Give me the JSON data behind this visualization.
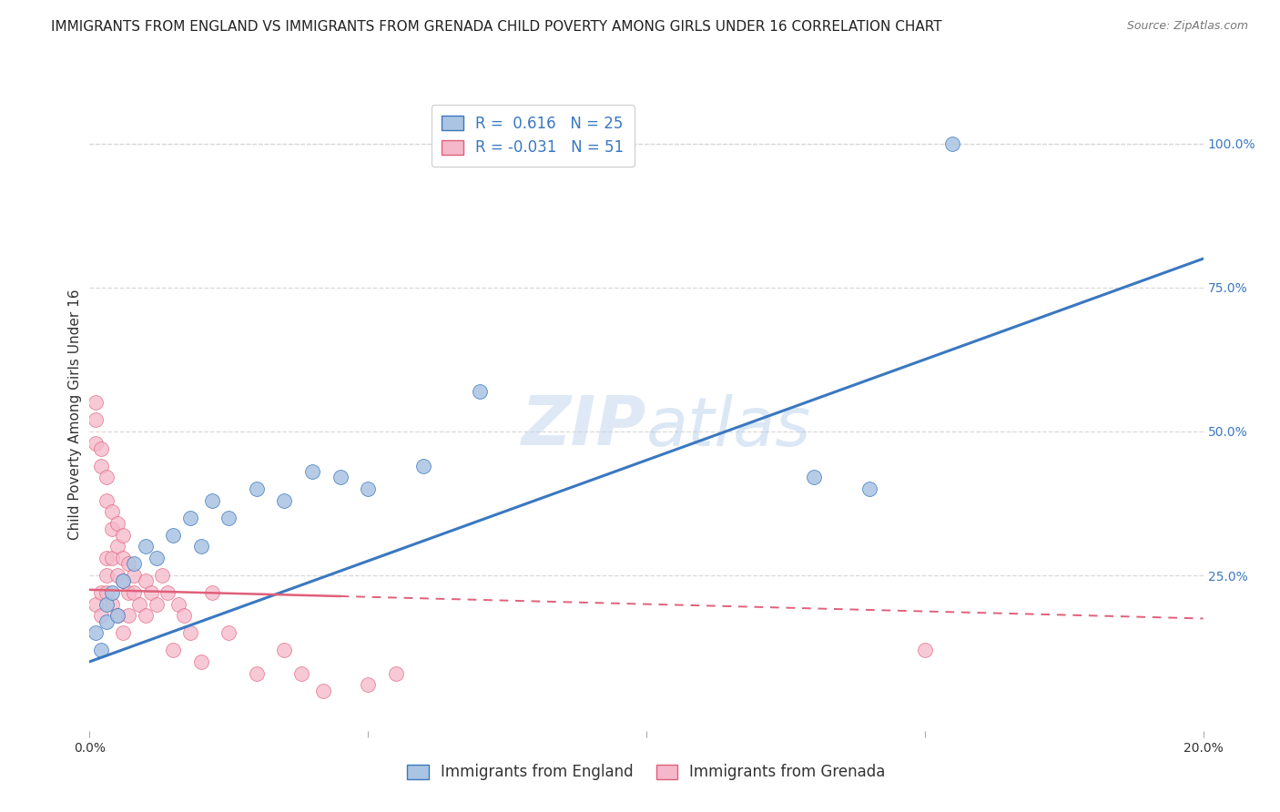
{
  "title": "IMMIGRANTS FROM ENGLAND VS IMMIGRANTS FROM GRENADA CHILD POVERTY AMONG GIRLS UNDER 16 CORRELATION CHART",
  "source": "Source: ZipAtlas.com",
  "ylabel": "Child Poverty Among Girls Under 16",
  "xlim": [
    0.0,
    0.2
  ],
  "ylim": [
    -0.02,
    1.08
  ],
  "ytick_right_labels": [
    "100.0%",
    "75.0%",
    "50.0%",
    "25.0%"
  ],
  "ytick_right_values": [
    1.0,
    0.75,
    0.5,
    0.25
  ],
  "watermark": "ZIPatlas",
  "legend_england_label": "Immigrants from England",
  "legend_grenada_label": "Immigrants from Grenada",
  "england_R": 0.616,
  "england_N": 25,
  "grenada_R": -0.031,
  "grenada_N": 51,
  "england_color": "#aac4e2",
  "england_line_color": "#3a78c0",
  "grenada_color": "#f5b8ca",
  "grenada_line_color": "#e0607a",
  "england_line_x0": 0.0,
  "england_line_y0": 0.1,
  "england_line_x1": 0.2,
  "england_line_y1": 0.8,
  "grenada_line_x0": 0.0,
  "grenada_line_y0": 0.225,
  "grenada_line_x1": 0.2,
  "grenada_line_y1": 0.175,
  "england_scatter_x": [
    0.001,
    0.002,
    0.003,
    0.003,
    0.004,
    0.005,
    0.006,
    0.008,
    0.01,
    0.012,
    0.015,
    0.018,
    0.02,
    0.022,
    0.025,
    0.03,
    0.035,
    0.04,
    0.045,
    0.05,
    0.06,
    0.07,
    0.13,
    0.14,
    0.155
  ],
  "england_scatter_y": [
    0.15,
    0.12,
    0.17,
    0.2,
    0.22,
    0.18,
    0.24,
    0.27,
    0.3,
    0.28,
    0.32,
    0.35,
    0.3,
    0.38,
    0.35,
    0.4,
    0.38,
    0.43,
    0.42,
    0.4,
    0.44,
    0.57,
    0.42,
    0.4,
    1.0
  ],
  "grenada_scatter_x": [
    0.001,
    0.001,
    0.001,
    0.001,
    0.002,
    0.002,
    0.002,
    0.002,
    0.003,
    0.003,
    0.003,
    0.003,
    0.003,
    0.004,
    0.004,
    0.004,
    0.004,
    0.005,
    0.005,
    0.005,
    0.005,
    0.006,
    0.006,
    0.006,
    0.006,
    0.007,
    0.007,
    0.007,
    0.008,
    0.008,
    0.009,
    0.01,
    0.01,
    0.011,
    0.012,
    0.013,
    0.014,
    0.015,
    0.016,
    0.017,
    0.018,
    0.02,
    0.022,
    0.025,
    0.03,
    0.035,
    0.038,
    0.042,
    0.05,
    0.055,
    0.15
  ],
  "grenada_scatter_y": [
    0.55,
    0.52,
    0.48,
    0.2,
    0.47,
    0.44,
    0.22,
    0.18,
    0.42,
    0.38,
    0.28,
    0.25,
    0.22,
    0.36,
    0.33,
    0.28,
    0.2,
    0.34,
    0.3,
    0.25,
    0.18,
    0.32,
    0.28,
    0.24,
    0.15,
    0.27,
    0.22,
    0.18,
    0.25,
    0.22,
    0.2,
    0.24,
    0.18,
    0.22,
    0.2,
    0.25,
    0.22,
    0.12,
    0.2,
    0.18,
    0.15,
    0.1,
    0.22,
    0.15,
    0.08,
    0.12,
    0.08,
    0.05,
    0.06,
    0.08,
    0.12
  ],
  "grid_color": "#d8d8d8",
  "background_color": "#ffffff",
  "title_fontsize": 11,
  "axis_label_fontsize": 11,
  "tick_fontsize": 10,
  "legend_fontsize": 12
}
